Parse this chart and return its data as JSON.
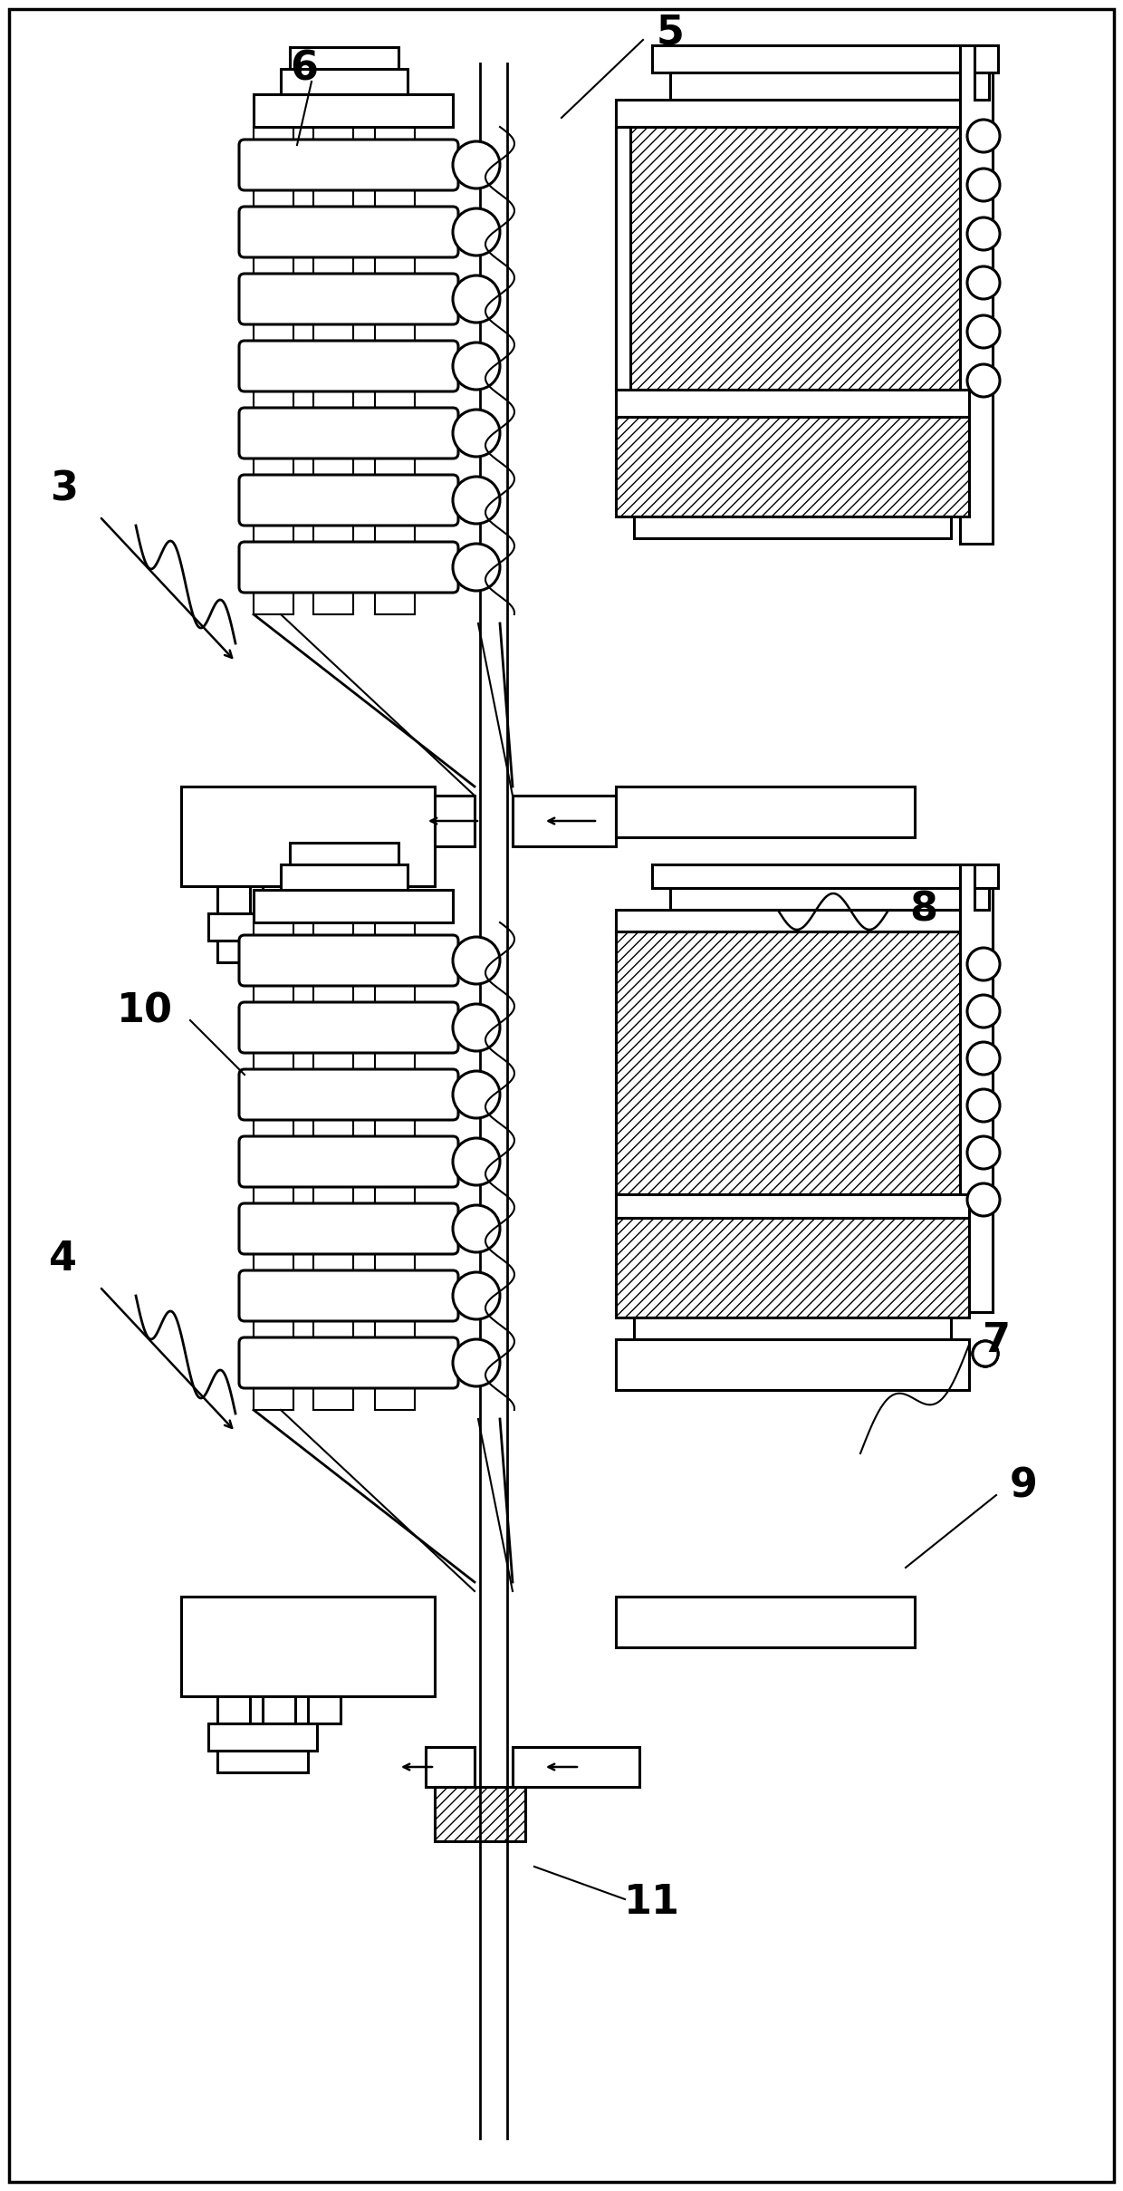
{
  "bg": "#ffffff",
  "lc": "#000000",
  "lw": 2.2,
  "figsize": [
    12.4,
    24.18
  ],
  "dpi": 100,
  "font_size": 32
}
